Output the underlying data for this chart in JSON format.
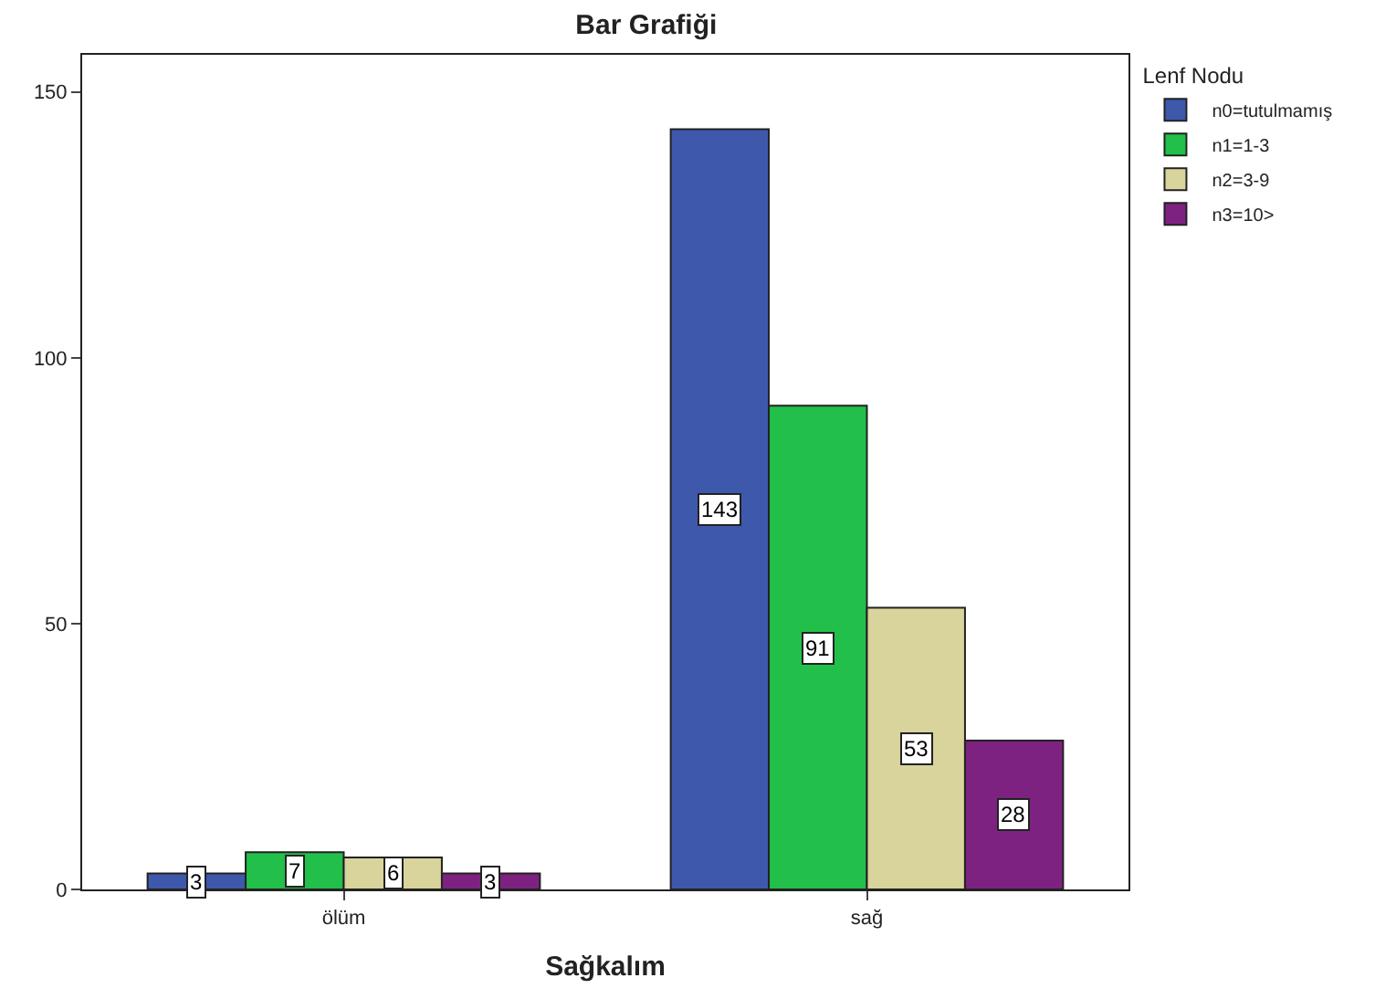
{
  "chart_data": {
    "type": "bar",
    "title": "Bar Grafiği",
    "xlabel": "Sağkalım",
    "legend_title": "Lenf Nodu",
    "categories": [
      "ölüm",
      "sağ"
    ],
    "series": [
      {
        "name": "n0=tutulmamış",
        "color": "#3e58ac",
        "values": [
          3,
          143
        ]
      },
      {
        "name": "n1=1-3",
        "color": "#22c04a",
        "values": [
          7,
          91
        ]
      },
      {
        "name": "n2=3-9",
        "color": "#d8d49c",
        "values": [
          6,
          53
        ]
      },
      {
        "name": "n3=10>",
        "color": "#7e2281",
        "values": [
          3,
          28
        ]
      }
    ],
    "ylim": [
      0,
      157
    ],
    "yticks": [
      0,
      50,
      100,
      150
    ],
    "legend": "top right",
    "data_labels": true
  }
}
